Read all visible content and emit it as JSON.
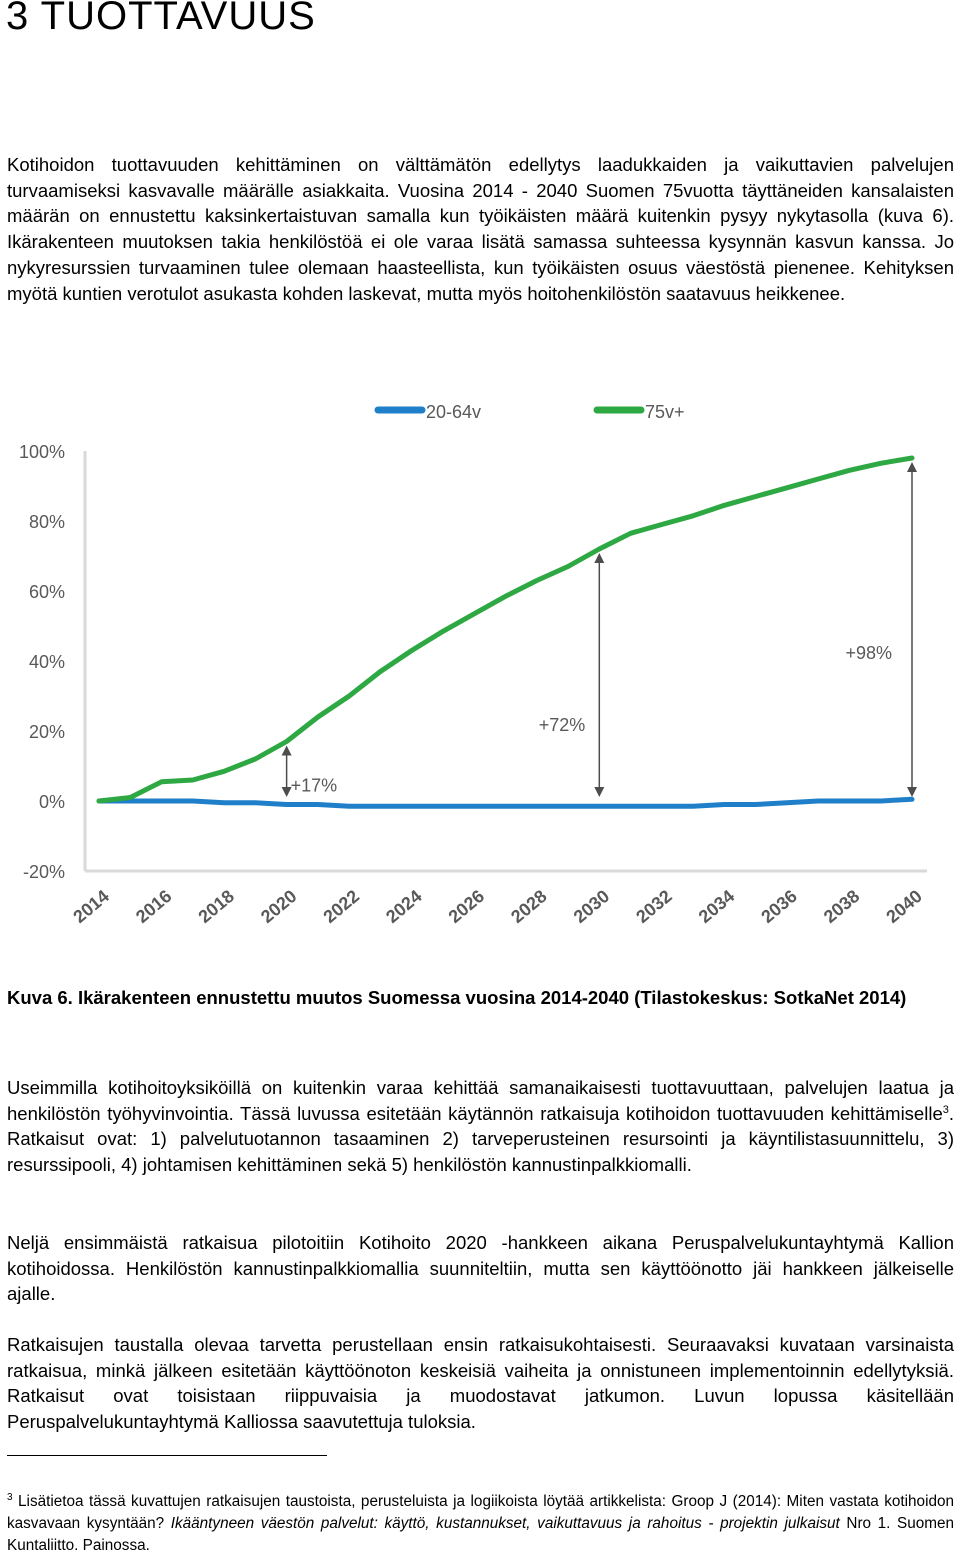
{
  "heading": "3 TUOTTAVUUS",
  "intro_paragraph": "Kotihoidon tuottavuuden kehittäminen on välttämätön edellytys laadukkaiden ja vaikuttavien palvelujen turvaamiseksi kasvavalle määrälle asiakkaita. Vuosina 2014 - 2040 Suomen 75vuotta täyttäneiden kansalaisten määrän on ennustettu kaksinkertaistuvan samalla kun työikäisten määrä kuitenkin pysyy nykytasolla (kuva 6). Ikärakenteen muutoksen takia henkilöstöä ei ole varaa lisätä samassa suhteessa kysynnän kasvun kanssa. Jo nykyresurssien turvaaminen tulee olemaan haasteellista, kun työikäisten osuus väestöstä pienenee. Kehityksen myötä kuntien verotulot asukasta kohden laskevat, mutta myös hoitohenkilöstön saatavuus heikkenee.",
  "caption": "Kuva 6. Ikärakenteen ennustettu muutos Suomessa vuosina 2014-2040 (Tilastokeskus: SotkaNet 2014)",
  "paragraph2": {
    "before_sup": "Useimmilla kotihoitoyksiköillä on kuitenkin varaa kehittää samanaikaisesti tuottavuuttaan, palvelujen laatua ja henkilöstön työhyvinvointia. Tässä luvussa esitetään käytännön ratkaisuja kotihoidon tuottavuuden kehittämiselle",
    "sup": "3",
    "after_sup": ". Ratkaisut ovat: 1) palvelutuotannon tasaaminen 2) tarveperusteinen resursointi ja käyntilistasuunnittelu, 3) resurssipooli, 4) johtamisen kehittäminen sekä 5) henkilöstön kannustinpalkkiomalli."
  },
  "paragraph3": "Neljä ensimmäistä ratkaisua pilotoitiin Kotihoito 2020 -hankkeen aikana Peruspalvelukuntayhtymä Kallion kotihoidossa. Henkilöstön kannustinpalkkiomallia suunniteltiin, mutta sen käyttöönotto jäi hankkeen jälkeiselle ajalle.",
  "paragraph4": "Ratkaisujen taustalla olevaa tarvetta perustellaan ensin ratkaisukohtaisesti. Seuraavaksi kuvataan varsinaista ratkaisua, minkä jälkeen esitetään käyttöönoton keskeisiä vaiheita ja onnistuneen implementoinnin edellytyksiä. Ratkaisut ovat toisistaan riippuvaisia ja muodostavat jatkumon. Luvun lopussa käsitellään Peruspalvelukuntayhtymä Kalliossa saavutettuja tuloksia.",
  "footnote": {
    "number": "3",
    "text1": " Lisätietoa tässä kuvattujen ratkaisujen taustoista, perusteluista ja logiikoista löytää artikkelista: Groop J (2014): Miten vastata kotihoidon kasvavaan kysyntään? ",
    "italic": "Ikääntyneen väestön palvelut: käyttö, kustannukset, vaikuttavuus ja rahoitus - projektin julkaisut",
    "text2": " Nro 1. Suomen Kuntaliitto. Painossa."
  },
  "chart_data": {
    "type": "line",
    "x": [
      2014,
      2015,
      2016,
      2017,
      2018,
      2019,
      2020,
      2021,
      2022,
      2023,
      2024,
      2025,
      2026,
      2027,
      2028,
      2029,
      2030,
      2031,
      2032,
      2033,
      2034,
      2035,
      2036,
      2037,
      2038,
      2039,
      2040
    ],
    "x_tick_labels": [
      "2014",
      "2016",
      "2018",
      "2020",
      "2022",
      "2024",
      "2026",
      "2028",
      "2030",
      "2032",
      "2034",
      "2036",
      "2038",
      "2040"
    ],
    "series": [
      {
        "name": "20-64v",
        "color": "#1f7fc8",
        "values": [
          0,
          0,
          0,
          0,
          -0.5,
          -0.5,
          -1,
          -1,
          -1.5,
          -1.5,
          -1.5,
          -1.5,
          -1.5,
          -1.5,
          -1.5,
          -1.5,
          -1.5,
          -1.5,
          -1.5,
          -1.5,
          -1,
          -1,
          -0.5,
          0,
          0,
          0,
          0.5
        ]
      },
      {
        "name": "75v+",
        "color": "#2ea842",
        "values": [
          0,
          1,
          5.5,
          6,
          8.5,
          12,
          17,
          24,
          30,
          37,
          43,
          48.5,
          53.5,
          58.5,
          63,
          67,
          72,
          76.5,
          79,
          81.5,
          84.5,
          87,
          89.5,
          92,
          94.5,
          96.5,
          98
        ]
      }
    ],
    "y_ticks": [
      "-20%",
      "0%",
      "20%",
      "40%",
      "60%",
      "80%",
      "100%"
    ],
    "ylim": [
      -20,
      100
    ],
    "annotations": [
      {
        "label": "+17%",
        "x": 2020
      },
      {
        "label": "+72%",
        "x": 2030
      },
      {
        "label": "+98%",
        "x": 2040
      }
    ],
    "legend_position": "top",
    "grid": false
  }
}
